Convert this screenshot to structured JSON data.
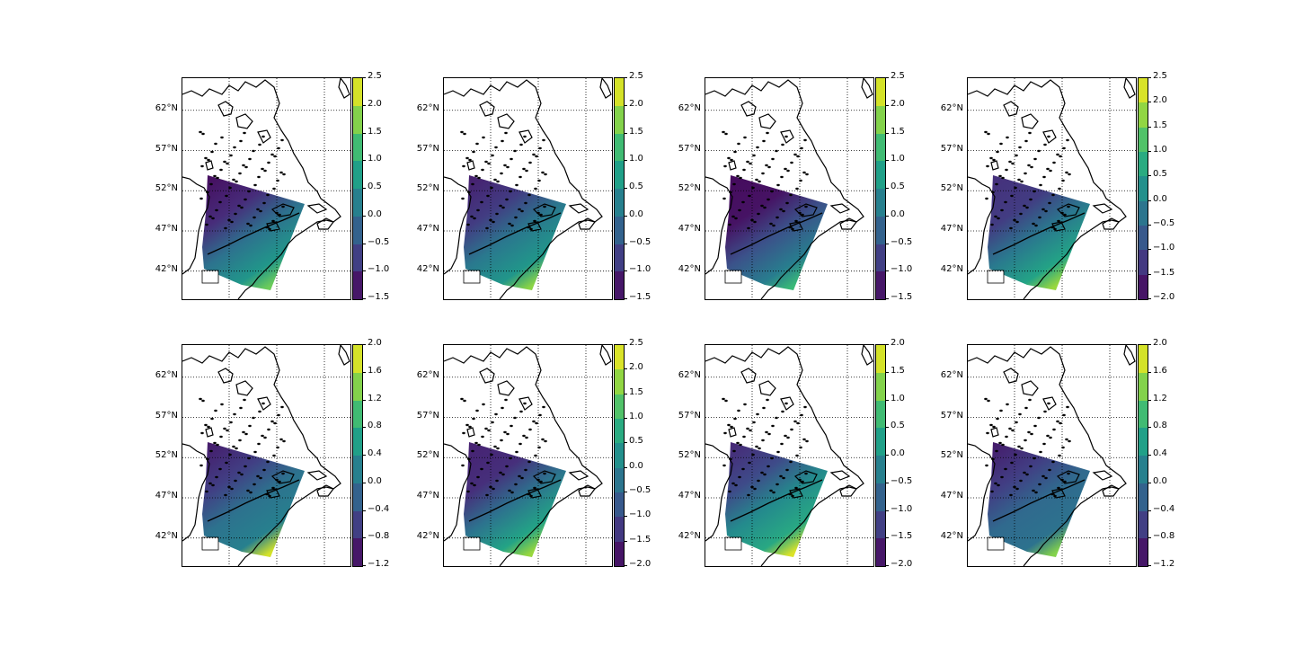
{
  "figure": {
    "type": "map-grid",
    "rows": 2,
    "cols": 4,
    "colormap": "viridis",
    "lat_labels": [
      "62°N",
      "57°N",
      "52°N",
      "47°N",
      "42°N"
    ],
    "lat_values": [
      62,
      57,
      52,
      47,
      42
    ],
    "lat_range": [
      38.5,
      66
    ],
    "gridlines": "dotted"
  },
  "panels": [
    {
      "id": "r1c1",
      "colorbar": {
        "ticks": [
          "2.5",
          "2.0",
          "1.5",
          "1.0",
          "0.5",
          "0.0",
          "−0.5",
          "−1.0",
          "−1.5"
        ],
        "vmin": -1.5,
        "vmax": 2.5
      },
      "field": {
        "nw": -1.4,
        "ne": -0.6,
        "sw": 0.6,
        "se": 1.6
      }
    },
    {
      "id": "r1c2",
      "colorbar": {
        "ticks": [
          "2.5",
          "2.0",
          "1.5",
          "1.0",
          "0.5",
          "0.0",
          "−0.5",
          "−1.0",
          "−1.5"
        ],
        "vmin": -1.5,
        "vmax": 2.5
      },
      "field": {
        "nw": -1.2,
        "ne": -0.4,
        "sw": 0.6,
        "se": 1.8
      }
    },
    {
      "id": "r1c3",
      "colorbar": {
        "ticks": [
          "2.5",
          "2.0",
          "1.5",
          "1.0",
          "0.5",
          "0.0",
          "−0.5",
          "−1.0",
          "−1.5"
        ],
        "vmin": -1.5,
        "vmax": 2.5
      },
      "field": {
        "nw": -1.4,
        "ne": -1.2,
        "sw": 0.2,
        "se": 1.2
      }
    },
    {
      "id": "r1c4",
      "colorbar": {
        "ticks": [
          "2.5",
          "2.0",
          "1.5",
          "1.0",
          "0.5",
          "0.0",
          "−0.5",
          "−1.0",
          "−1.5",
          "−2.0"
        ],
        "vmin": -2.0,
        "vmax": 2.5
      },
      "field": {
        "nw": -1.4,
        "ne": -1.0,
        "sw": 0.6,
        "se": 1.8
      }
    },
    {
      "id": "r2c1",
      "colorbar": {
        "ticks": [
          "2.0",
          "1.6",
          "1.2",
          "0.8",
          "0.4",
          "0.0",
          "−0.4",
          "−0.8",
          "−1.2"
        ],
        "vmin": -1.2,
        "vmax": 2.0
      },
      "field": {
        "nw": -1.0,
        "ne": -0.2,
        "sw": 0.2,
        "se": 1.8
      }
    },
    {
      "id": "r2c2",
      "colorbar": {
        "ticks": [
          "2.5",
          "2.0",
          "1.5",
          "1.0",
          "0.5",
          "0.0",
          "−0.5",
          "−1.0",
          "−1.5",
          "−2.0"
        ],
        "vmin": -2.0,
        "vmax": 2.5
      },
      "field": {
        "nw": -1.6,
        "ne": -1.2,
        "sw": 0.6,
        "se": 1.8
      }
    },
    {
      "id": "r2c3",
      "colorbar": {
        "ticks": [
          "2.0",
          "1.5",
          "1.0",
          "0.5",
          "0.0",
          "−0.5",
          "−1.0",
          "−1.5",
          "−2.0"
        ],
        "vmin": -2.0,
        "vmax": 2.0
      },
      "field": {
        "nw": -1.6,
        "ne": -0.6,
        "sw": 0.4,
        "se": 1.8
      }
    },
    {
      "id": "r2c4",
      "colorbar": {
        "ticks": [
          "2.0",
          "1.6",
          "1.2",
          "0.8",
          "0.4",
          "0.0",
          "−0.4",
          "−0.8",
          "−1.2"
        ],
        "vmin": -1.2,
        "vmax": 2.0
      },
      "field": {
        "nw": -1.0,
        "ne": -0.2,
        "sw": 0.0,
        "se": 1.4
      }
    }
  ]
}
